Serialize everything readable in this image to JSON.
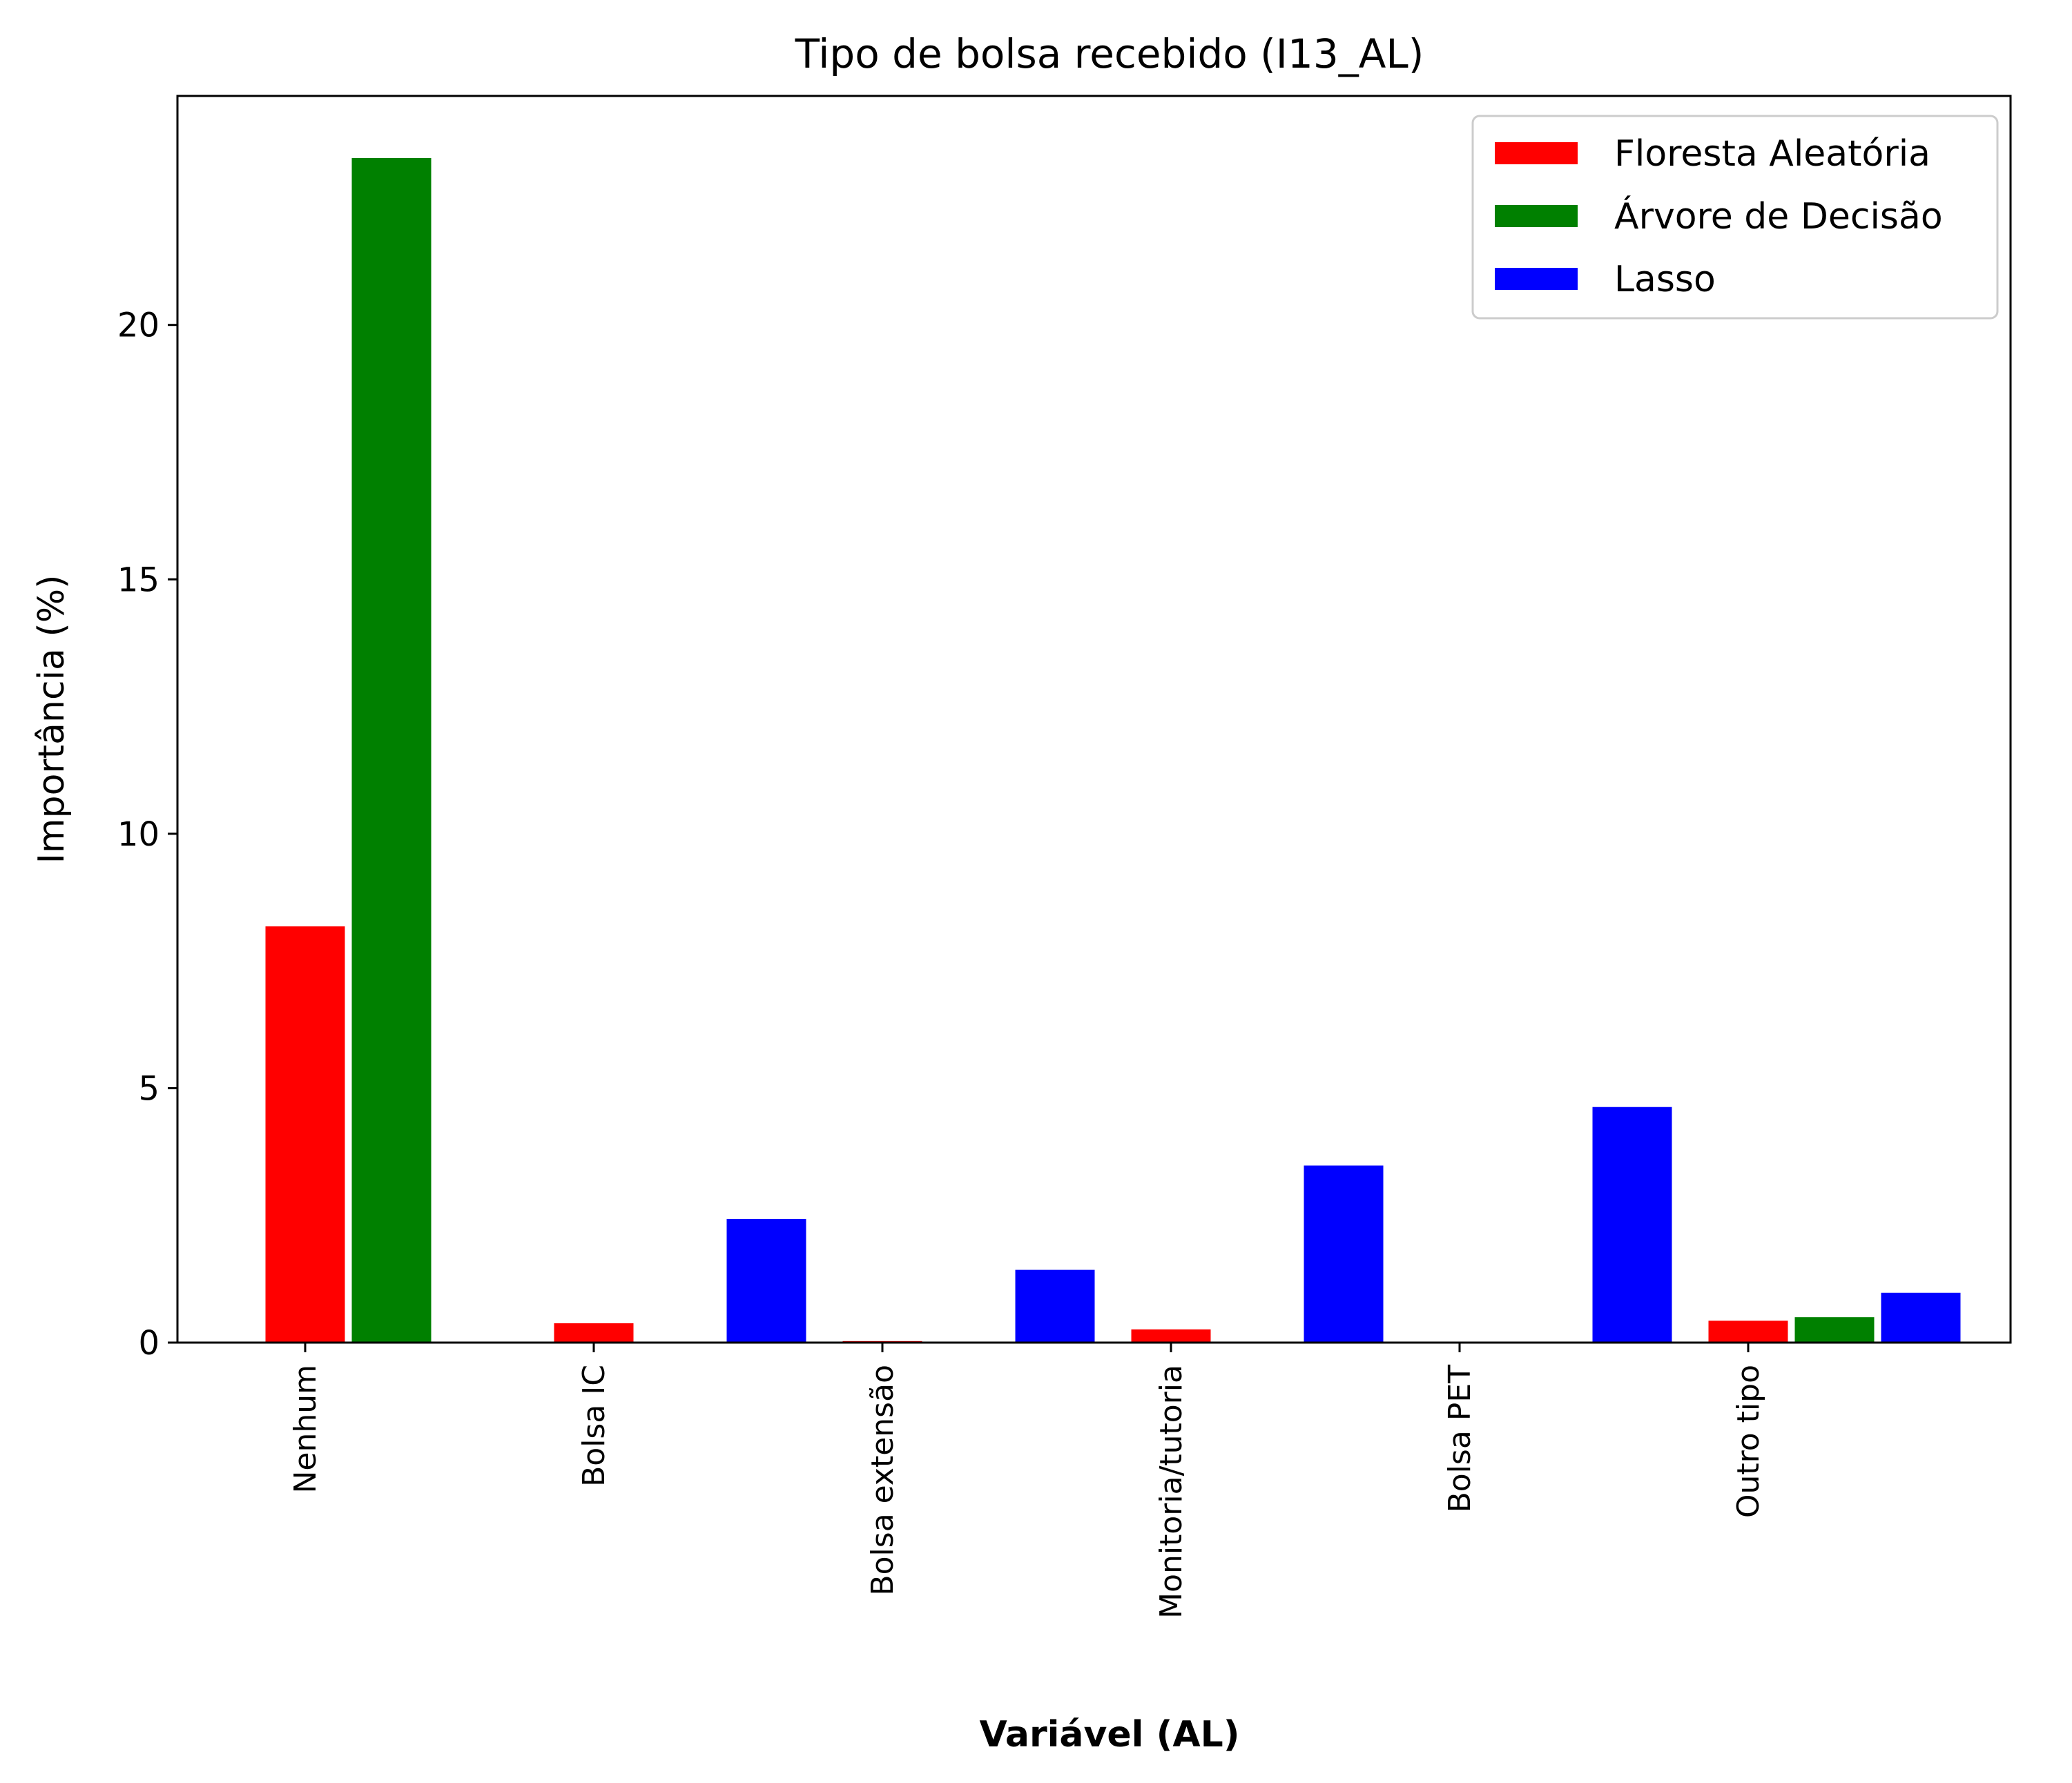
{
  "chart_data": {
    "type": "bar",
    "title": "Tipo de bolsa recebido (I13_AL)",
    "xlabel": "Variável (AL)",
    "ylabel": "Importância (%)",
    "ylim": [
      0,
      24.5
    ],
    "yticks": [
      0,
      5,
      10,
      15,
      20
    ],
    "categories": [
      "Nenhum",
      "Bolsa IC",
      "Bolsa extensão",
      "Monitoria/tutoria",
      "Bolsa PET",
      "Outro tipo"
    ],
    "series": [
      {
        "name": "Floresta Aleatória",
        "color": "#ff0000",
        "values": [
          8.2,
          0.4,
          0.05,
          0.28,
          0.0,
          0.45
        ]
      },
      {
        "name": "Árvore de Decisão",
        "color": "#008000",
        "values": [
          23.3,
          0.0,
          0.0,
          0.0,
          0.0,
          0.52
        ]
      },
      {
        "name": "Lasso",
        "color": "#0000ff",
        "values": [
          0.0,
          2.45,
          1.45,
          3.5,
          4.65,
          1.0
        ]
      }
    ],
    "legend_position": "top-right",
    "grid": false
  }
}
